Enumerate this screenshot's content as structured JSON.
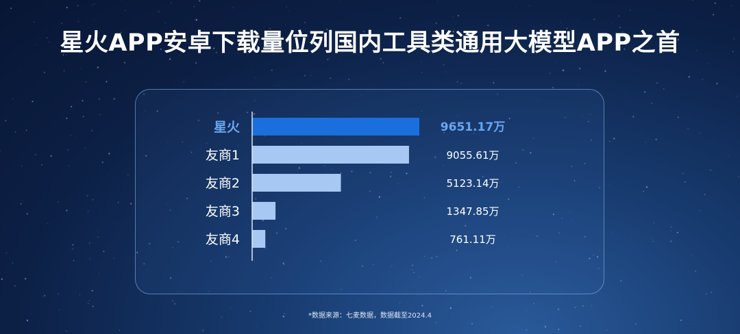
{
  "title": "星火APP安卓下载量位列国内工具类通用大模型APP之首",
  "source": "*数据来源：七麦数据，数据截至2024.4",
  "colors": {
    "highlight_bar": "#1a6fdc",
    "highlight_text": "#6aa6f0",
    "bar": "#a8c8f4"
  },
  "chart_data": {
    "type": "bar",
    "orientation": "horizontal",
    "categories": [
      "星火",
      "友商1",
      "友商2",
      "友商3",
      "友商4"
    ],
    "values": [
      9651.17,
      9055.61,
      5123.14,
      1347.85,
      761.11
    ],
    "data_labels": [
      "9651.17万",
      "9055.61万",
      "5123.14万",
      "1347.85万",
      "761.11万"
    ],
    "highlight": "星火",
    "unit": "万",
    "grid": false
  }
}
